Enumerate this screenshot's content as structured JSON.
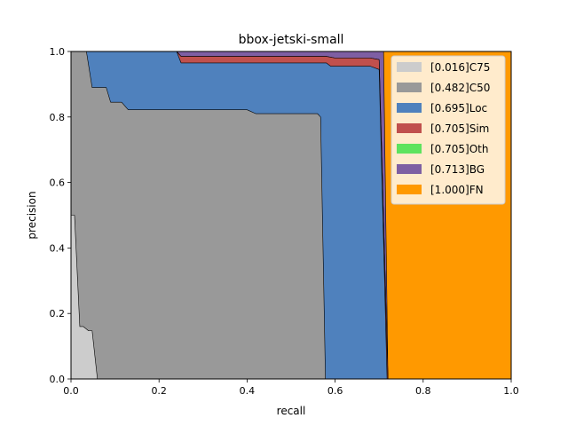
{
  "chart_data": {
    "type": "area",
    "title": "bbox-jetski-small",
    "xlabel": "recall",
    "ylabel": "precision",
    "xlim": [
      0,
      1
    ],
    "ylim": [
      0,
      1
    ],
    "xticks": [
      "0.0",
      "0.2",
      "0.4",
      "0.6",
      "0.8",
      "1.0"
    ],
    "yticks": [
      "0.0",
      "0.2",
      "0.4",
      "0.6",
      "0.8",
      "1.0"
    ],
    "grid": false,
    "legend_position": "top-right",
    "series": [
      {
        "name": "[0.016]C75",
        "color": "#cccccc",
        "points": [
          [
            0,
            0.5
          ],
          [
            0.008,
            0.5
          ],
          [
            0.02,
            0.16
          ],
          [
            0.028,
            0.16
          ],
          [
            0.04,
            0.147
          ],
          [
            0.048,
            0.147
          ],
          [
            0.06,
            0
          ],
          [
            1,
            0
          ]
        ]
      },
      {
        "name": "[0.482]C50",
        "color": "#999999",
        "points": [
          [
            0,
            1
          ],
          [
            0.035,
            1
          ],
          [
            0.048,
            0.89
          ],
          [
            0.08,
            0.89
          ],
          [
            0.09,
            0.845
          ],
          [
            0.115,
            0.845
          ],
          [
            0.13,
            0.822
          ],
          [
            0.4,
            0.822
          ],
          [
            0.42,
            0.81
          ],
          [
            0.56,
            0.81
          ],
          [
            0.567,
            0.8
          ],
          [
            0.578,
            0
          ],
          [
            1,
            0
          ]
        ]
      },
      {
        "name": "[0.695]Loc",
        "color": "#4f81bd",
        "points": [
          [
            0,
            1
          ],
          [
            0.24,
            1
          ],
          [
            0.25,
            0.965
          ],
          [
            0.58,
            0.965
          ],
          [
            0.59,
            0.955
          ],
          [
            0.68,
            0.955
          ],
          [
            0.7,
            0.945
          ],
          [
            0.718,
            0
          ],
          [
            1,
            0
          ]
        ]
      },
      {
        "name": "[0.705]Sim",
        "color": "#c0504d",
        "points": [
          [
            0,
            1
          ],
          [
            0.24,
            1
          ],
          [
            0.25,
            0.985
          ],
          [
            0.58,
            0.985
          ],
          [
            0.6,
            0.98
          ],
          [
            0.68,
            0.98
          ],
          [
            0.7,
            0.975
          ],
          [
            0.72,
            0
          ],
          [
            1,
            0
          ]
        ]
      },
      {
        "name": "[0.705]Oth",
        "color": "#5ee35e",
        "points": [
          [
            0,
            1
          ],
          [
            0.24,
            1
          ],
          [
            0.25,
            0.985
          ],
          [
            0.58,
            0.985
          ],
          [
            0.6,
            0.98
          ],
          [
            0.68,
            0.98
          ],
          [
            0.7,
            0.975
          ],
          [
            0.72,
            0
          ],
          [
            1,
            0
          ]
        ]
      },
      {
        "name": "[0.713]BG",
        "color": "#7e5fa3",
        "points": [
          [
            0,
            1
          ],
          [
            0.71,
            1
          ],
          [
            0.72,
            0
          ],
          [
            1,
            0
          ]
        ]
      },
      {
        "name": "[1.000]FN",
        "color": "#ff9900",
        "points": [
          [
            0,
            1
          ],
          [
            1,
            1
          ],
          [
            1,
            0
          ]
        ]
      }
    ]
  }
}
